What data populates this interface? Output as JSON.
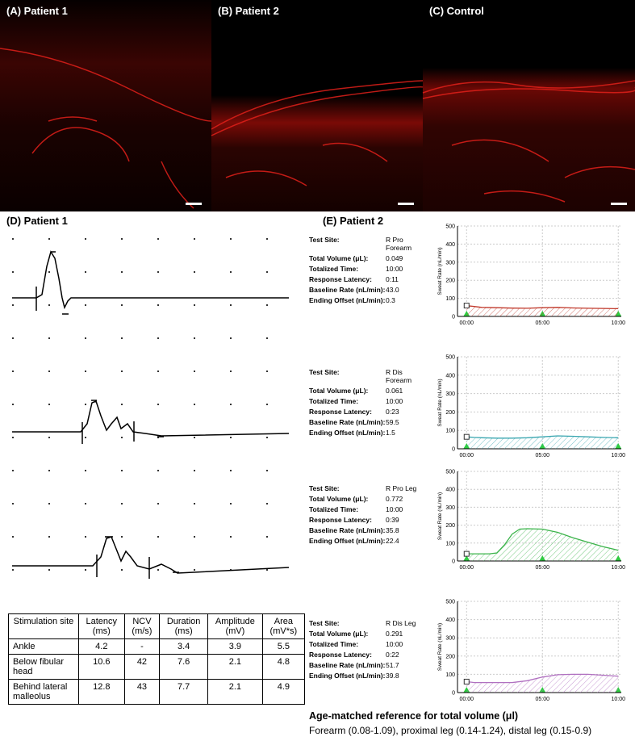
{
  "figure": {
    "images": [
      {
        "label": "(A) Patient 1"
      },
      {
        "label": "(B) Patient 2"
      },
      {
        "label": "(C) Control"
      }
    ],
    "panel_d": {
      "title": "(D) Patient 1",
      "table": {
        "header": [
          "Stimulation site",
          "Latency (ms)",
          "NCV (m/s)",
          "Duration (ms)",
          "Amplitude (mV)",
          "Area (mV*s)"
        ],
        "rows": [
          [
            "Ankle",
            "4.2",
            "-",
            "3.4",
            "3.9",
            "5.5"
          ],
          [
            "Below fibular head",
            "10.6",
            "42",
            "7.6",
            "2.1",
            "4.8"
          ],
          [
            "Behind lateral malleolus",
            "12.8",
            "43",
            "7.7",
            "2.1",
            "4.9"
          ]
        ]
      }
    },
    "panel_e": {
      "title": "(E) Patient 2",
      "tests": [
        {
          "fields": [
            {
              "label": "Test Site:",
              "value": "R Pro Forearm"
            },
            {
              "label": "Total Volume (μL):",
              "value": "0.049"
            },
            {
              "label": "Totalized Time:",
              "value": "10:00"
            },
            {
              "label": "Response Latency:",
              "value": "0:11"
            },
            {
              "label": "Baseline Rate (nL/min):",
              "value": "43.0"
            },
            {
              "label": "Ending Offset (nL/min):",
              "value": "0.3"
            }
          ]
        },
        {
          "fields": [
            {
              "label": "Test Site:",
              "value": "R Dis Forearm"
            },
            {
              "label": "Total Volume (μL):",
              "value": "0.061"
            },
            {
              "label": "Totalized Time:",
              "value": "10:00"
            },
            {
              "label": "Response Latency:",
              "value": "0:23"
            },
            {
              "label": "Baseline Rate (nL/min):",
              "value": "59.5"
            },
            {
              "label": "Ending Offset (nL/min):",
              "value": "1.5"
            }
          ]
        },
        {
          "fields": [
            {
              "label": "Test Site:",
              "value": "R Pro Leg"
            },
            {
              "label": "Total Volume (μL):",
              "value": "0.772"
            },
            {
              "label": "Totalized Time:",
              "value": "10:00"
            },
            {
              "label": "Response Latency:",
              "value": "0:39"
            },
            {
              "label": "Baseline Rate (nL/min):",
              "value": "35.8"
            },
            {
              "label": "Ending Offset (nL/min):",
              "value": "22.4"
            }
          ]
        },
        {
          "fields": [
            {
              "label": "Test Site:",
              "value": "R Dis Leg"
            },
            {
              "label": "Total Volume (μL):",
              "value": "0.291"
            },
            {
              "label": "Totalized Time:",
              "value": "10:00"
            },
            {
              "label": "Response Latency:",
              "value": "0:22"
            },
            {
              "label": "Baseline Rate (nL/min):",
              "value": "51.7"
            },
            {
              "label": "Ending Offset (nL/min):",
              "value": "39.8"
            }
          ]
        }
      ],
      "reference": {
        "title": "Age-matched reference for total volume (μl)",
        "text": "Forearm (0.08-1.09), proximal leg (0.14-1.24), distal leg (0.15-0.9)"
      }
    }
  },
  "chart_data": [
    {
      "type": "line",
      "y_label": "Sweat Rate (nL/min)",
      "x": [
        0,
        0.5,
        1,
        2,
        3,
        4,
        5,
        6,
        7,
        8,
        9,
        10
      ],
      "series": [
        {
          "color": "#c0392b",
          "values": [
            60,
            55,
            50,
            48,
            46,
            45,
            48,
            50,
            47,
            45,
            44,
            43
          ]
        }
      ],
      "xlim": [
        -0.6,
        10.2
      ],
      "ylim": [
        0,
        500
      ],
      "xticks": [
        {
          "value": 0,
          "label": "00:00"
        },
        {
          "value": 5,
          "label": "05:00"
        },
        {
          "value": 10,
          "label": "10:00"
        }
      ],
      "yticks": [
        0,
        100,
        200,
        300,
        400,
        500
      ],
      "grid": true
    },
    {
      "type": "line",
      "y_label": "Sweat Rate (nL/min)",
      "x": [
        0,
        0.5,
        1,
        2,
        3,
        4,
        5,
        6,
        7,
        8,
        9,
        10
      ],
      "series": [
        {
          "color": "#3aa6b0",
          "values": [
            65,
            62,
            60,
            58,
            58,
            60,
            65,
            70,
            68,
            65,
            62,
            60
          ]
        }
      ],
      "xlim": [
        -0.6,
        10.2
      ],
      "ylim": [
        0,
        500
      ],
      "xticks": [
        {
          "value": 0,
          "label": "00:00"
        },
        {
          "value": 5,
          "label": "05:00"
        },
        {
          "value": 10,
          "label": "10:00"
        }
      ],
      "yticks": [
        0,
        100,
        200,
        300,
        400,
        500
      ],
      "grid": true
    },
    {
      "type": "line",
      "y_label": "Sweat Rate (nL/min)",
      "x": [
        0,
        0.5,
        1,
        1.5,
        2,
        2.5,
        3,
        3.5,
        4,
        5,
        6,
        7,
        8,
        9,
        10
      ],
      "series": [
        {
          "color": "#3cb44b",
          "values": [
            40,
            40,
            40,
            40,
            45,
            90,
            150,
            178,
            180,
            178,
            160,
            130,
            105,
            80,
            60
          ]
        }
      ],
      "xlim": [
        -0.6,
        10.2
      ],
      "ylim": [
        0,
        500
      ],
      "xticks": [
        {
          "value": 0,
          "label": "00:00"
        },
        {
          "value": 5,
          "label": "05:00"
        },
        {
          "value": 10,
          "label": "10:00"
        }
      ],
      "yticks": [
        0,
        100,
        200,
        300,
        400,
        500
      ],
      "grid": true
    },
    {
      "type": "line",
      "y_label": "Sweat Rate (nL/min)",
      "x": [
        0,
        0.5,
        1,
        2,
        3,
        4,
        5,
        6,
        7,
        8,
        9,
        10
      ],
      "series": [
        {
          "color": "#b070c0",
          "values": [
            60,
            55,
            55,
            55,
            55,
            65,
            85,
            98,
            100,
            100,
            95,
            90
          ]
        }
      ],
      "xlim": [
        -0.6,
        10.2
      ],
      "ylim": [
        0,
        500
      ],
      "xticks": [
        {
          "value": 0,
          "label": "00:00"
        },
        {
          "value": 5,
          "label": "05:00"
        },
        {
          "value": 10,
          "label": "10:00"
        }
      ],
      "yticks": [
        0,
        100,
        200,
        300,
        400,
        500
      ],
      "grid": true
    }
  ]
}
